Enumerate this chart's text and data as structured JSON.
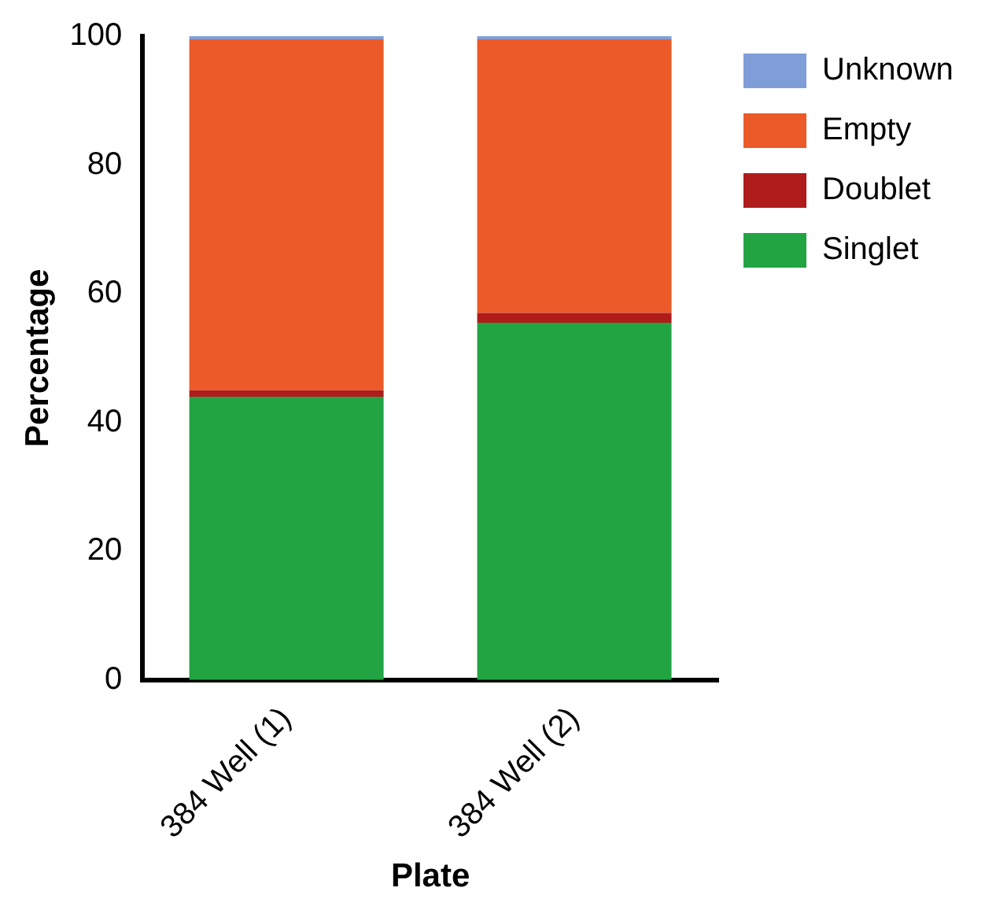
{
  "chart_data": {
    "type": "bar",
    "stacked": true,
    "xlabel": "Plate",
    "ylabel": "Percentage",
    "categories": [
      "384 Well (1)",
      "384 Well (2)"
    ],
    "series": [
      {
        "name": "Singlet",
        "color": "#22a443",
        "values": [
          44,
          55.5
        ]
      },
      {
        "name": "Doublet",
        "color": "#b01c1c",
        "values": [
          1,
          1.5
        ]
      },
      {
        "name": "Empty",
        "color": "#eb5a28",
        "values": [
          54.5,
          42.5
        ]
      },
      {
        "name": "Unknown",
        "color": "#7f9ed8",
        "values": [
          0.5,
          0.5
        ]
      }
    ],
    "ylim": [
      0,
      100
    ],
    "yticks": [
      0,
      20,
      40,
      60,
      80,
      100
    ],
    "grid": false,
    "legend": "top right"
  }
}
